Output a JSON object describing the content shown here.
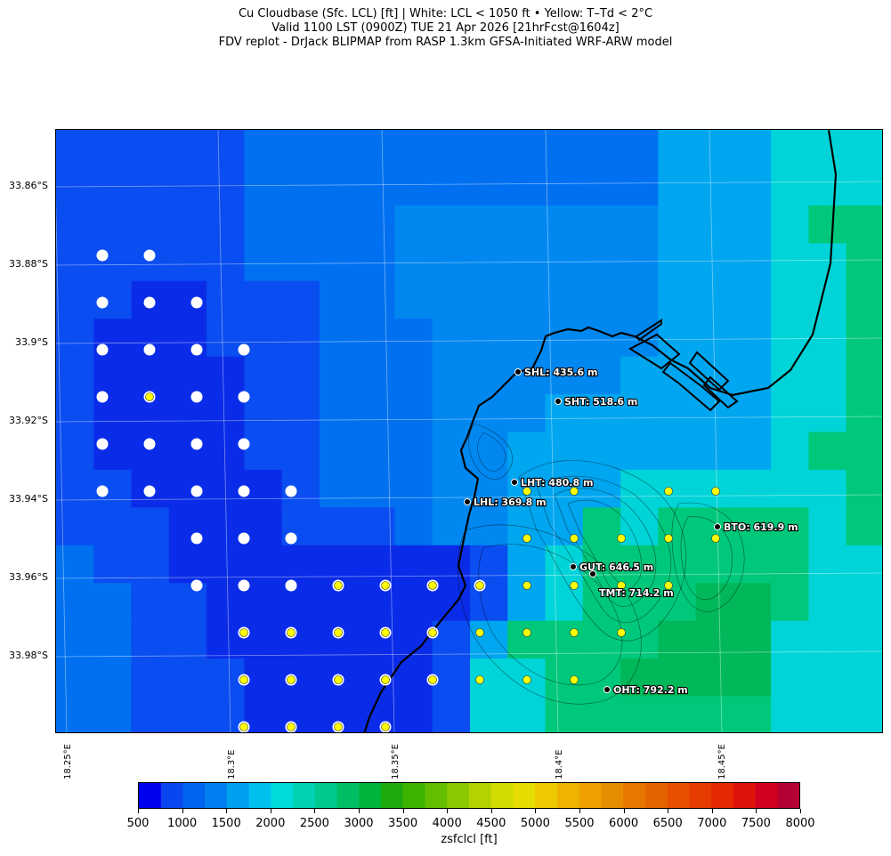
{
  "title": {
    "line1": "Cu Cloudbase (Sfc. LCL) [ft]  |  White: LCL < 1050 ft • Yellow: T–Td < 2°C",
    "line2": "Valid 1100 LST (0900Z) TUE 21 Apr 2026 [21hrFcst@1604z]",
    "line3": "FDV replot - DrJack BLIPMAP from RASP 1.3km GFSA-Initiated WRF-ARW model"
  },
  "axes": {
    "lat_labels": [
      "33.86°S",
      "33.88°S",
      "33.9°S",
      "33.92°S",
      "33.94°S",
      "33.96°S",
      "33.98°S"
    ],
    "lon_labels": [
      "18.25°E",
      "18.3°E",
      "18.35°E",
      "18.4°E",
      "18.45°E"
    ]
  },
  "stations": [
    {
      "label": "SHL: 435.6 m"
    },
    {
      "label": "SHT: 518.6 m"
    },
    {
      "label": "LHT: 480.8 m"
    },
    {
      "label": "LHL: 369.8 m"
    },
    {
      "label": "BTO: 619.9 m"
    },
    {
      "label": "GUT: 646.5 m"
    },
    {
      "label": "TMT: 714.2 m"
    },
    {
      "label": "OHT: 792.2 m"
    }
  ],
  "colorbar": {
    "label": "zsfclcl [ft]",
    "ticks": [
      "500",
      "1000",
      "1500",
      "2000",
      "2500",
      "3000",
      "3500",
      "4000",
      "4500",
      "5000",
      "5500",
      "6000",
      "6500",
      "7000",
      "7500",
      "8000"
    ],
    "colors": [
      "#0000f0",
      "#0a46f0",
      "#0064f0",
      "#0080f0",
      "#00a0f0",
      "#00c0f0",
      "#00dcdc",
      "#00d2b4",
      "#00c88c",
      "#00be64",
      "#00b43c",
      "#1eaa0a",
      "#3cb400",
      "#64be00",
      "#8cc800",
      "#b4d200",
      "#d2dc00",
      "#e6dc00",
      "#f0c800",
      "#f0b400",
      "#f0a000",
      "#e68c00",
      "#e67800",
      "#e66400",
      "#e65000",
      "#e63c00",
      "#e62800",
      "#dc140a",
      "#d2001e",
      "#b40032"
    ]
  },
  "legend": {
    "white_marker": "LCL < 1050 ft",
    "yellow_marker": "T–Td < 2°C"
  }
}
